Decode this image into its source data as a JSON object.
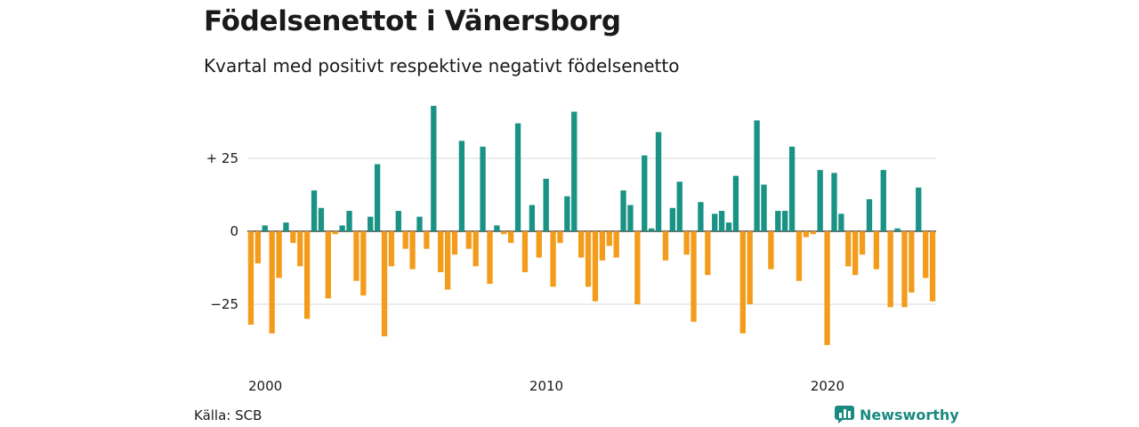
{
  "title": "Födelsenettot i Vänersborg",
  "subtitle": "Kvartal med positivt respektive negativt födelsenetto",
  "source": "Källa: SCB",
  "brand": {
    "name": "Newsworthy",
    "icon": "bar-chart-logo-icon",
    "color": "#1a8a80"
  },
  "colors": {
    "positive": "#1a9284",
    "negative": "#f39c1b",
    "grid": "#d9d9d9",
    "zero_line": "#1a1a1a"
  },
  "chart_data": {
    "type": "bar",
    "x_start": "2000Q1",
    "ylim": [
      -42,
      44
    ],
    "y_ticks": [
      {
        "value": 25,
        "label": "+ 25"
      },
      {
        "value": 0,
        "label": "0"
      },
      {
        "value": -25,
        "label": "−25"
      }
    ],
    "x_ticks": [
      {
        "quarter_index": 0,
        "label": "2000"
      },
      {
        "quarter_index": 40,
        "label": "2010"
      },
      {
        "quarter_index": 80,
        "label": "2020"
      }
    ],
    "grid": true,
    "values": [
      -32,
      -11,
      2,
      -35,
      -16,
      3,
      -4,
      -12,
      -30,
      14,
      8,
      -23,
      -1,
      2,
      7,
      -17,
      -22,
      5,
      23,
      -36,
      -12,
      7,
      -6,
      -13,
      5,
      -6,
      43,
      -14,
      -20,
      -8,
      31,
      -6,
      -12,
      29,
      -18,
      2,
      -1,
      -4,
      37,
      -14,
      9,
      -9,
      18,
      -19,
      -4,
      12,
      41,
      -9,
      -19,
      -24,
      -10,
      -5,
      -9,
      14,
      9,
      -25,
      26,
      1,
      34,
      -10,
      8,
      17,
      -8,
      -31,
      10,
      -15,
      6,
      7,
      3,
      19,
      -35,
      -25,
      38,
      16,
      -13,
      7,
      7,
      29,
      -17,
      -2,
      -1,
      21,
      -39,
      20,
      6,
      -12,
      -15,
      -8,
      11,
      -13,
      21,
      -26,
      1,
      -26,
      -21,
      15,
      -16,
      -24
    ]
  }
}
